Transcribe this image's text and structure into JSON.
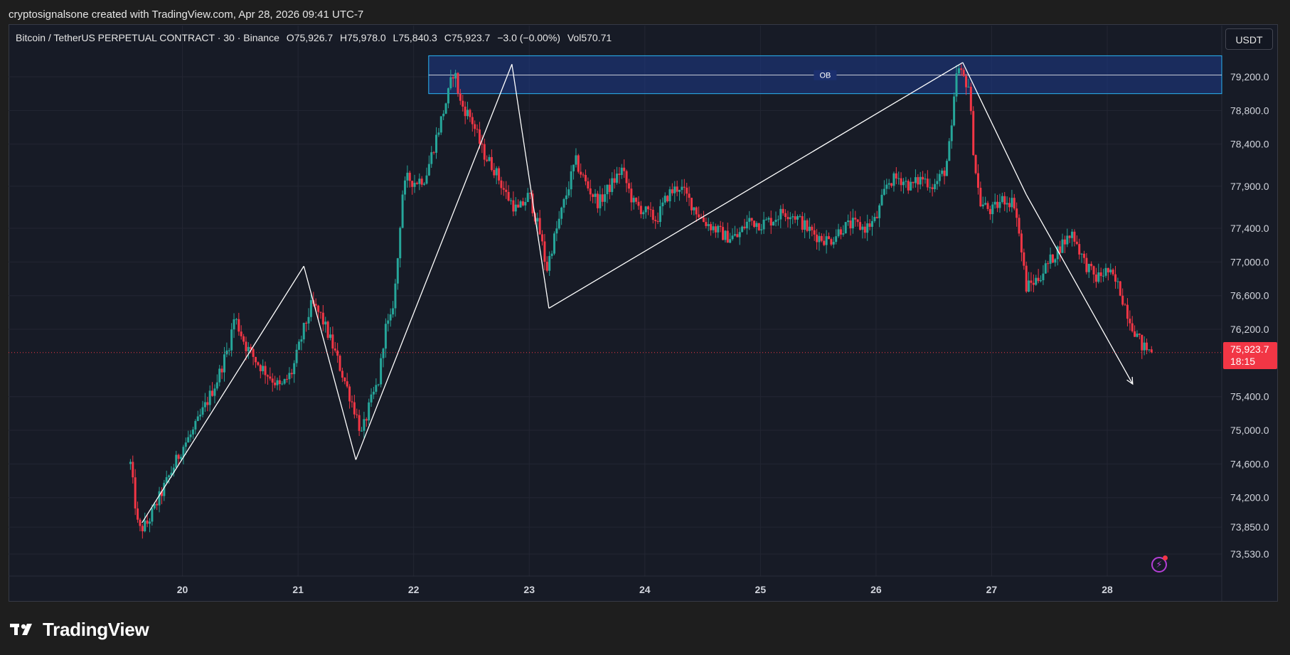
{
  "credit": "cryptosignalsone created with TradingView.com, Apr 28, 2026 09:41 UTC-7",
  "legend": {
    "symbol": "Bitcoin / TetherUS PERPETUAL CONTRACT · 30 · Binance",
    "open": "O75,926.7",
    "high": "H75,978.0",
    "low": "L75,840.3",
    "close": "C75,923.7",
    "change": "−3.0 (−0.00%)",
    "volume": "Vol570.71"
  },
  "currency_button": "USDT",
  "price_tag": {
    "price": "75,923.7",
    "countdown": "18:15"
  },
  "footer_brand": "TradingView",
  "colors": {
    "up": "#26a69a",
    "down": "#f23645",
    "ob_zone": "#1e3a8a",
    "ob_border": "#29b6f6",
    "pattern": "#ffffff"
  },
  "chart_data": {
    "type": "candlestick",
    "interval": "30",
    "y_axis_ticks": [
      79200,
      78800,
      78400,
      77900,
      77400,
      77000,
      76600,
      76200,
      75400,
      75000,
      74600,
      74200,
      73850,
      73530
    ],
    "y_tick_labels": [
      "79,200.0",
      "78,800.0",
      "78,400.0",
      "77,900.0",
      "77,400.0",
      "77,000.0",
      "76,600.0",
      "76,200.0",
      "75,400.0",
      "75,000.0",
      "74,600.0",
      "74,200.0",
      "73,850.0",
      "73,530.0"
    ],
    "x_axis_ticks": [
      20,
      21,
      22,
      23,
      24,
      25,
      26,
      27,
      28
    ],
    "x_tick_labels": [
      "20",
      "21",
      "22",
      "23",
      "24",
      "25",
      "26",
      "27",
      "28"
    ],
    "x_range": [
      19.55,
      28.4
    ],
    "last_price": 75923.7,
    "ob_zone": {
      "label": "OB",
      "x_start": 22.13,
      "y_low": 79000,
      "y_high": 79450,
      "y_mid": 79220
    },
    "price_path": [
      [
        19.55,
        74600
      ],
      [
        19.62,
        73800
      ],
      [
        19.7,
        73900
      ],
      [
        19.8,
        74200
      ],
      [
        19.9,
        74500
      ],
      [
        20.0,
        74800
      ],
      [
        20.1,
        75000
      ],
      [
        20.2,
        75300
      ],
      [
        20.3,
        75600
      ],
      [
        20.4,
        76000
      ],
      [
        20.45,
        76350
      ],
      [
        20.55,
        76000
      ],
      [
        20.65,
        75800
      ],
      [
        20.75,
        75650
      ],
      [
        20.85,
        75500
      ],
      [
        20.95,
        75700
      ],
      [
        21.05,
        76200
      ],
      [
        21.12,
        76500
      ],
      [
        21.2,
        76350
      ],
      [
        21.3,
        76000
      ],
      [
        21.4,
        75600
      ],
      [
        21.5,
        75200
      ],
      [
        21.55,
        74950
      ],
      [
        21.62,
        75300
      ],
      [
        21.7,
        75600
      ],
      [
        21.75,
        76200
      ],
      [
        21.8,
        76300
      ],
      [
        21.85,
        76800
      ],
      [
        21.9,
        77800
      ],
      [
        21.95,
        78000
      ],
      [
        22.0,
        77950
      ],
      [
        22.1,
        78000
      ],
      [
        22.2,
        78500
      ],
      [
        22.3,
        79000
      ],
      [
        22.35,
        79300
      ],
      [
        22.4,
        78900
      ],
      [
        22.5,
        78700
      ],
      [
        22.6,
        78300
      ],
      [
        22.7,
        78100
      ],
      [
        22.8,
        77800
      ],
      [
        22.9,
        77600
      ],
      [
        23.0,
        77800
      ],
      [
        23.1,
        77300
      ],
      [
        23.15,
        76900
      ],
      [
        23.2,
        77200
      ],
      [
        23.3,
        77700
      ],
      [
        23.4,
        78200
      ],
      [
        23.5,
        77900
      ],
      [
        23.6,
        77700
      ],
      [
        23.7,
        77900
      ],
      [
        23.8,
        78100
      ],
      [
        23.9,
        77700
      ],
      [
        24.0,
        77600
      ],
      [
        24.1,
        77500
      ],
      [
        24.2,
        77800
      ],
      [
        24.3,
        77900
      ],
      [
        24.4,
        77700
      ],
      [
        24.5,
        77500
      ],
      [
        24.6,
        77400
      ],
      [
        24.7,
        77300
      ],
      [
        24.8,
        77300
      ],
      [
        24.9,
        77500
      ],
      [
        25.0,
        77450
      ],
      [
        25.1,
        77500
      ],
      [
        25.2,
        77600
      ],
      [
        25.3,
        77550
      ],
      [
        25.4,
        77400
      ],
      [
        25.5,
        77300
      ],
      [
        25.6,
        77250
      ],
      [
        25.7,
        77400
      ],
      [
        25.8,
        77450
      ],
      [
        25.9,
        77400
      ],
      [
        26.0,
        77500
      ],
      [
        26.1,
        77950
      ],
      [
        26.2,
        78000
      ],
      [
        26.3,
        77900
      ],
      [
        26.4,
        78000
      ],
      [
        26.5,
        77900
      ],
      [
        26.6,
        78100
      ],
      [
        26.65,
        78500
      ],
      [
        26.7,
        79300
      ],
      [
        26.8,
        79100
      ],
      [
        26.85,
        78200
      ],
      [
        26.9,
        77700
      ],
      [
        27.0,
        77600
      ],
      [
        27.1,
        77750
      ],
      [
        27.2,
        77700
      ],
      [
        27.3,
        76700
      ],
      [
        27.4,
        76800
      ],
      [
        27.5,
        77000
      ],
      [
        27.6,
        77200
      ],
      [
        27.7,
        77350
      ],
      [
        27.8,
        77000
      ],
      [
        27.9,
        76800
      ],
      [
        28.0,
        76900
      ],
      [
        28.1,
        76700
      ],
      [
        28.2,
        76300
      ],
      [
        28.3,
        76000
      ],
      [
        28.4,
        75920
      ]
    ],
    "pattern_lines": [
      [
        [
          19.65,
          73900
        ],
        [
          21.05,
          76950
        ]
      ],
      [
        [
          21.05,
          76950
        ],
        [
          21.5,
          74650
        ]
      ],
      [
        [
          21.5,
          74650
        ],
        [
          22.85,
          79350
        ]
      ],
      [
        [
          22.85,
          79350
        ],
        [
          23.17,
          76450
        ]
      ],
      [
        [
          23.17,
          76450
        ],
        [
          26.75,
          79370
        ]
      ],
      [
        [
          26.75,
          79370
        ],
        [
          27.3,
          77800
        ]
      ]
    ],
    "arrow_segment": [
      [
        27.3,
        77800
      ],
      [
        28.22,
        75550
      ]
    ]
  }
}
